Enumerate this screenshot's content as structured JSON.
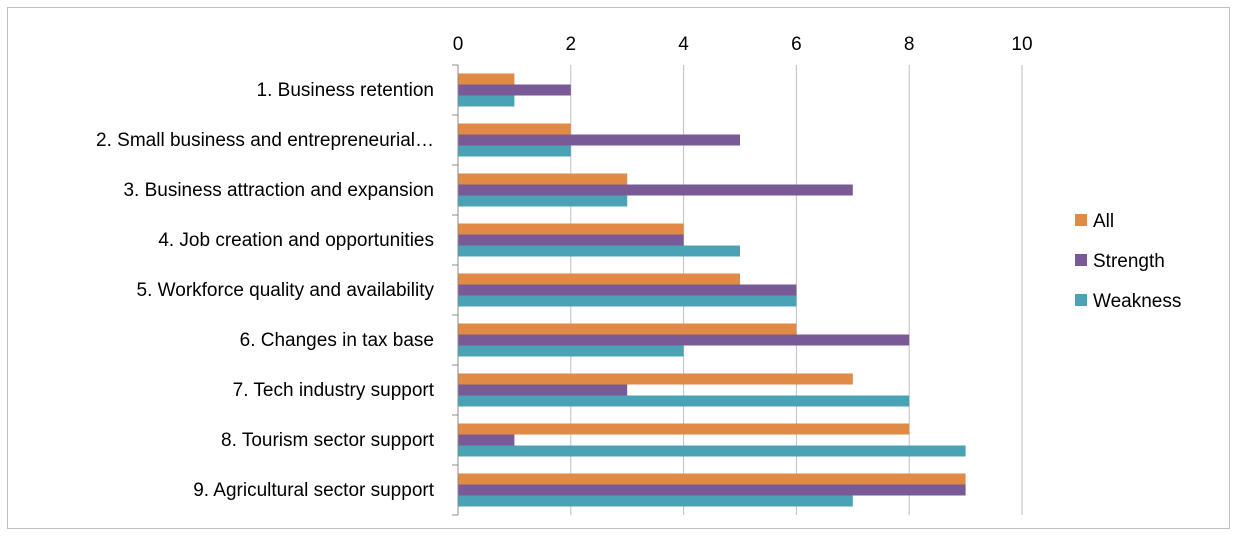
{
  "chart_data": {
    "type": "bar",
    "orientation": "horizontal",
    "categories": [
      "1. Business retention",
      "2. Small business and entrepreneurial…",
      "3. Business attraction and expansion",
      "4. Job creation and opportunities",
      "5. Workforce quality and availability",
      "6. Changes in tax base",
      "7. Tech industry support",
      "8. Tourism sector support",
      "9. Agricultural sector support"
    ],
    "series": [
      {
        "name": "All",
        "color": "#e08a45",
        "values": [
          1,
          2,
          3,
          4,
          5,
          6,
          7,
          8,
          9
        ]
      },
      {
        "name": "Strength",
        "color": "#7a5a96",
        "values": [
          2,
          5,
          7,
          4,
          6,
          8,
          3,
          1,
          9
        ]
      },
      {
        "name": "Weakness",
        "color": "#4aa3b5",
        "values": [
          1,
          2,
          3,
          5,
          6,
          4,
          8,
          9,
          7
        ]
      }
    ],
    "xlim": [
      0,
      10
    ],
    "x_ticks": [
      "0",
      "2",
      "4",
      "6",
      "8",
      "10"
    ],
    "x_axis_position": "top",
    "grid": "vertical",
    "legend_position": "right",
    "title": "",
    "xlabel": "",
    "ylabel": ""
  }
}
